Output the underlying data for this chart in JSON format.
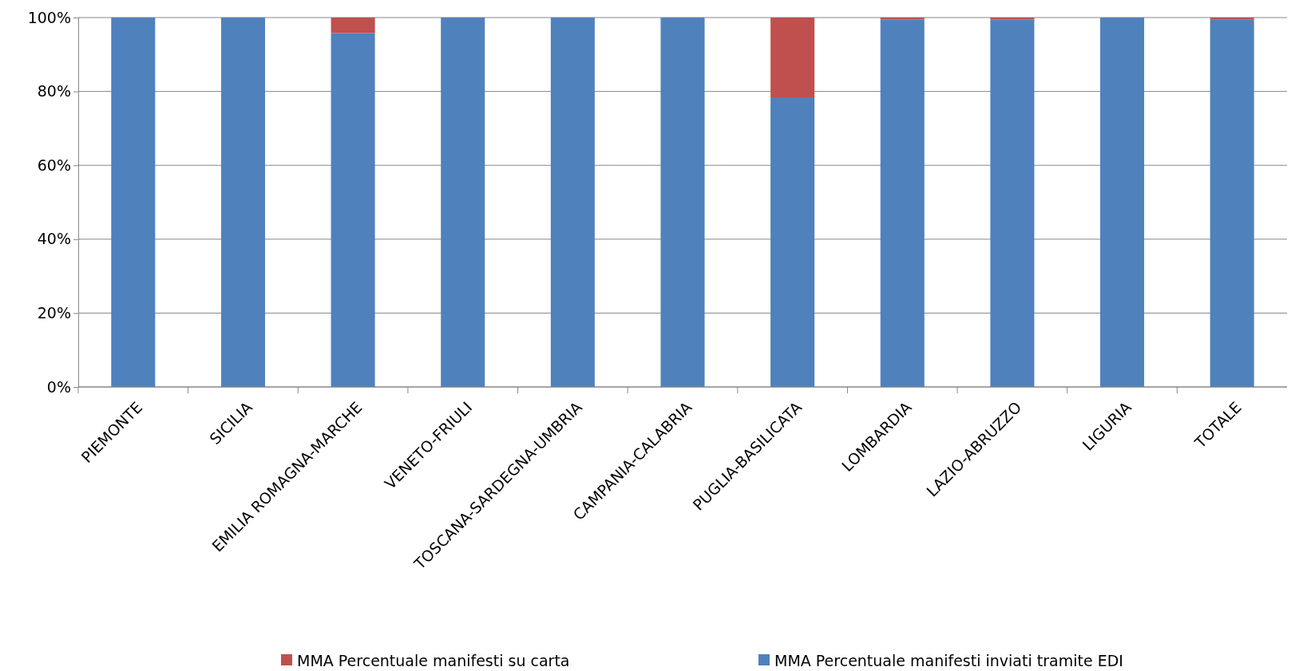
{
  "chart_data": {
    "type": "bar",
    "stacked": true,
    "categories": [
      "PIEMONTE",
      "SICILIA",
      "EMILIA ROMAGNA-MARCHE",
      "VENETO-FRIULI",
      "TOSCANA-SARDEGNA-UMBRIA",
      "CAMPANIA-CALABRIA",
      "PUGLIA-BASILICATA",
      "LOMBARDIA",
      "LAZIO-ABRUZZO",
      "LIGURIA",
      "TOTALE"
    ],
    "series": [
      {
        "name": "MMA Percentuale manifesti inviati  tramite EDI",
        "color": "#4f81bd",
        "values": [
          100,
          100,
          95.8,
          100,
          100,
          100,
          78.4,
          99.5,
          99.5,
          100,
          99.4
        ]
      },
      {
        "name": "MMA Percentuale manifesti su carta",
        "color": "#c0504d",
        "values": [
          0,
          0,
          4.2,
          0,
          0,
          0,
          21.6,
          0.5,
          0.5,
          0,
          0.6
        ]
      }
    ],
    "ylim": [
      0,
      100
    ],
    "yticks": [
      {
        "value": 0,
        "label": "0%"
      },
      {
        "value": 20,
        "label": "20%"
      },
      {
        "value": 40,
        "label": "40%"
      },
      {
        "value": 60,
        "label": "60%"
      },
      {
        "value": 80,
        "label": "80%"
      },
      {
        "value": 100,
        "label": "100%"
      }
    ],
    "grid": "y",
    "legend": "bottom"
  }
}
